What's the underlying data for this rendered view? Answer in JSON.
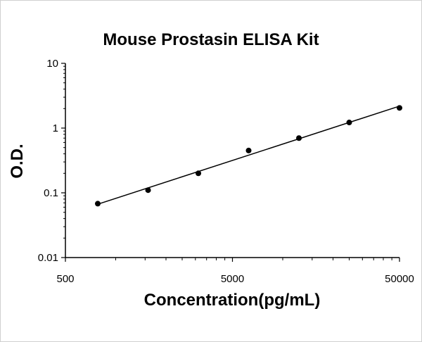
{
  "chart_data": {
    "type": "scatter",
    "title": "Mouse Prostasin ELISA Kit",
    "xlabel": "Concentration(pg/mL)",
    "ylabel": "O.D.",
    "x_scale": "log",
    "y_scale": "log",
    "xlim": [
      500,
      50000
    ],
    "ylim": [
      0.01,
      10
    ],
    "x_ticks": [
      "500",
      "5000",
      "50000"
    ],
    "y_ticks": [
      "0.01",
      "0.1",
      "1",
      "10"
    ],
    "grid": false,
    "legend": "none",
    "trendline": "power",
    "series": [
      {
        "x": [
          781,
          1563,
          3125,
          6250,
          12500,
          25000,
          50000
        ],
        "y": [
          0.068,
          0.11,
          0.2,
          0.45,
          0.7,
          1.22,
          2.05
        ]
      }
    ],
    "colors": {
      "marker": "#000000",
      "line": "#000000",
      "axis": "#000000"
    }
  }
}
